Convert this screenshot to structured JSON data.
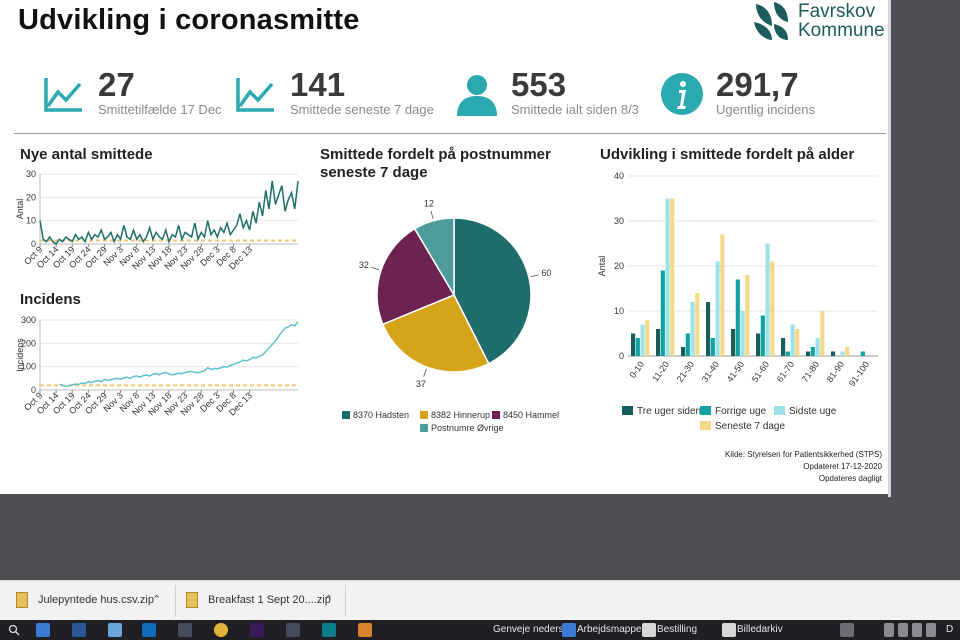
{
  "report": {
    "title": "Udvikling i coronasmitte",
    "logo": {
      "line1": "Favrskov",
      "line2": "Kommune"
    },
    "kpis": [
      {
        "value": "27",
        "label": "Smittetilfælde 17 Dec",
        "icon": "line-chart-icon"
      },
      {
        "value": "141",
        "label": "Smittede seneste 7 dage",
        "icon": "line-chart-icon"
      },
      {
        "value": "553",
        "label": "Smittede ialt siden 8/3",
        "icon": "person-icon"
      },
      {
        "value": "291,7",
        "label": "Ugentlig incidens",
        "icon": "info-icon"
      }
    ],
    "source": {
      "line1": "Kilde: Styrelsen for Patientsikkerhed (STPS)",
      "line2": "Opdateret 17-12-2020",
      "line3": "Opdateres dagligt"
    },
    "colors": {
      "teal_dark": "#1d6f68",
      "teal_light": "#5fc1c9",
      "threshold": "#f2c66d"
    }
  },
  "chart_data": [
    {
      "type": "line",
      "title": "Nye antal smittede",
      "ylabel": "Antal",
      "xlabel": "",
      "ylim": [
        0,
        30
      ],
      "yticks": [
        0,
        10,
        20,
        30
      ],
      "xticks": [
        "Oct 9",
        "Oct 14",
        "Oct 19",
        "Oct 24",
        "Oct 29",
        "Nov 3",
        "Nov 8",
        "Nov 13",
        "Nov 18",
        "Nov 23",
        "Nov 28",
        "Dec 3",
        "Dec 8",
        "Dec 13"
      ],
      "x_start": "Oct 9",
      "series": [
        {
          "values": [
            10,
            2,
            1,
            3,
            1,
            0,
            2,
            1,
            3,
            2,
            1,
            4,
            2,
            3,
            1,
            5,
            2,
            4,
            3,
            6,
            2,
            3,
            5,
            1,
            4,
            2,
            8,
            3,
            2,
            6,
            2,
            4,
            1,
            3,
            7,
            2,
            5,
            3,
            2,
            6,
            1,
            4,
            3,
            8,
            2,
            5,
            4,
            3,
            9,
            2,
            5,
            3,
            10,
            4,
            6,
            3,
            7,
            5,
            9,
            4,
            6,
            8,
            13,
            7,
            10,
            6,
            14,
            9,
            18,
            12,
            23,
            15,
            27,
            17,
            21,
            25,
            14,
            19,
            22,
            15,
            27
          ]
        },
        {
          "values": [
            1.5,
            1.5,
            1.5,
            1.5,
            1.5,
            1.5,
            1.5,
            1.5,
            1.5,
            1.5,
            1.5,
            1.5,
            1.5,
            1.5,
            1.5,
            1.5,
            1.5,
            1.5,
            1.5,
            1.5,
            1.5,
            1.5,
            1.5,
            1.5,
            1.5,
            1.5,
            1.5,
            1.5,
            1.5,
            1.5,
            1.5,
            1.5,
            1.5,
            1.5,
            1.5,
            1.5,
            1.5,
            1.5,
            1.5,
            1.5,
            1.5,
            1.5,
            1.5,
            1.5,
            1.5,
            1.5,
            1.5,
            1.5,
            1.5,
            1.5,
            1.5,
            1.5,
            1.5,
            1.5,
            1.5,
            1.5,
            1.5,
            1.5,
            1.5,
            1.5,
            1.5,
            1.5,
            1.5,
            1.5,
            1.5,
            1.5,
            1.5,
            1.5,
            1.5,
            1.5,
            1.5,
            1.5,
            1.5,
            1.5,
            1.5,
            1.5,
            1.5,
            1.5,
            1.5,
            1.5,
            1.5
          ]
        }
      ]
    },
    {
      "type": "line",
      "title": "Incidens",
      "ylabel": "Incidens",
      "xlabel": "",
      "ylim": [
        0,
        300
      ],
      "yticks": [
        0,
        100,
        200,
        300
      ],
      "xticks": [
        "Oct 9",
        "Oct 14",
        "Oct 19",
        "Oct 24",
        "Oct 29",
        "Nov 3",
        "Nov 8",
        "Nov 13",
        "Nov 18",
        "Nov 23",
        "Nov 28",
        "Dec 3",
        "Dec 8",
        "Dec 13"
      ],
      "x_start": "Oct 9",
      "series": [
        {
          "values": [
            null,
            null,
            null,
            null,
            null,
            null,
            25,
            20,
            15,
            18,
            22,
            25,
            24,
            30,
            28,
            35,
            32,
            38,
            40,
            36,
            45,
            42,
            44,
            48,
            50,
            46,
            52,
            55,
            50,
            58,
            60,
            55,
            62,
            65,
            60,
            68,
            70,
            65,
            72,
            75,
            70,
            65,
            68,
            72,
            70,
            75,
            78,
            80,
            76,
            74,
            78,
            82,
            95,
            88,
            92,
            90,
            95,
            100,
            98,
            105,
            110,
            115,
            120,
            128,
            125,
            130,
            140,
            138,
            145,
            150,
            165,
            180,
            195,
            210,
            230,
            250,
            265,
            270,
            280,
            275,
            292
          ]
        },
        {
          "values": [
            20,
            20,
            20,
            20,
            20,
            20,
            20,
            20,
            20,
            20,
            20,
            20,
            20,
            20,
            20,
            20,
            20,
            20,
            20,
            20,
            20,
            20,
            20,
            20,
            20,
            20,
            20,
            20,
            20,
            20,
            20,
            20,
            20,
            20,
            20,
            20,
            20,
            20,
            20,
            20,
            20,
            20,
            20,
            20,
            20,
            20,
            20,
            20,
            20,
            20,
            20,
            20,
            20,
            20,
            20,
            20,
            20,
            20,
            20,
            20,
            20,
            20,
            20,
            20,
            20,
            20,
            20,
            20,
            20,
            20,
            20,
            20,
            20,
            20,
            20,
            20,
            20,
            20,
            20,
            20,
            20
          ]
        }
      ]
    },
    {
      "type": "pie",
      "title": "Smittede fordelt på postnummer seneste 7 dage",
      "slices": [
        {
          "name": "8370 Hadsten",
          "value": 60,
          "color": "#1f6d6b"
        },
        {
          "name": "8382 Hinnerup",
          "value": 37,
          "color": "#d5a419"
        },
        {
          "name": "8450 Hammel",
          "value": 32,
          "color": "#6c2350"
        },
        {
          "name": "Postnumre Øvrige",
          "value": 12,
          "color": "#4d9b9b"
        }
      ]
    },
    {
      "type": "bar",
      "title": "Udvikling i smittede fordelt på alder",
      "ylabel": "Antal",
      "xlabel": "",
      "ylim": [
        0,
        40
      ],
      "yticks": [
        0,
        10,
        20,
        30,
        40
      ],
      "categories": [
        "0-10",
        "11-20",
        "21-30",
        "31-40",
        "41-50",
        "51-60",
        "61-70",
        "71-80",
        "81-90",
        "91-100"
      ],
      "series": [
        {
          "name": "Tre uger siden",
          "color": "#175e5a",
          "values": [
            5,
            6,
            2,
            12,
            6,
            5,
            4,
            1,
            1,
            0
          ]
        },
        {
          "name": "Forrige uge",
          "color": "#11a3a1",
          "values": [
            4,
            19,
            5,
            4,
            17,
            9,
            1,
            2,
            0,
            1
          ]
        },
        {
          "name": "Sidste uge",
          "color": "#9de2e6",
          "values": [
            7,
            35,
            12,
            21,
            10,
            25,
            7,
            4,
            1,
            0
          ]
        },
        {
          "name": "Seneste 7 dage",
          "color": "#f5d98a",
          "values": [
            8,
            35,
            14,
            27,
            18,
            21,
            6,
            10,
            2,
            0
          ]
        }
      ]
    }
  ],
  "downloads": [
    {
      "name": "Julepyntede hus.csv.zip"
    },
    {
      "name": "Breakfast 1 Sept 20....zip"
    }
  ],
  "taskbar": {
    "items": [
      "Genveje nederst",
      "Arbejdsmappe",
      "Bestilling",
      "Billedarkiv"
    ],
    "tray": "D"
  }
}
